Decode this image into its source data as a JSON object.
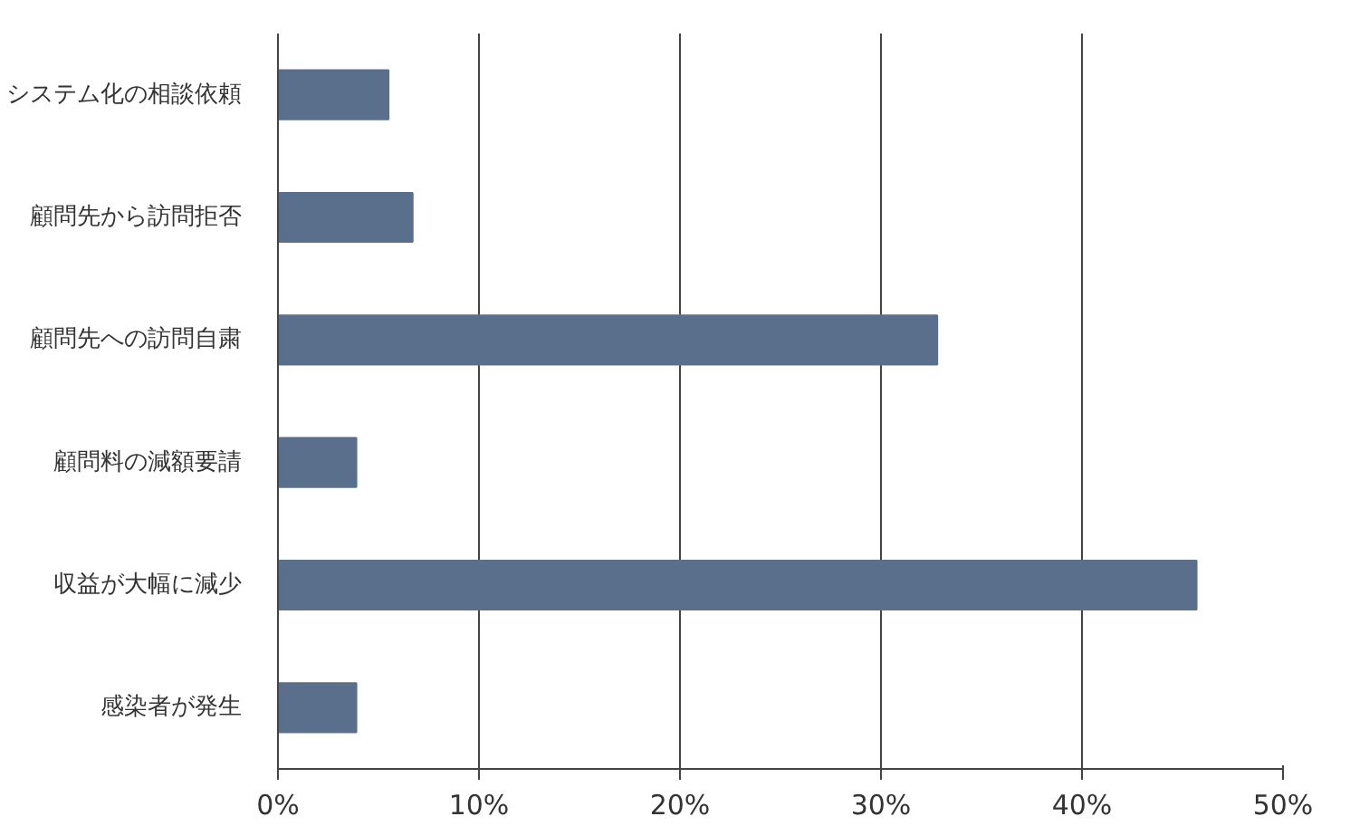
{
  "chart_data": {
    "type": "bar",
    "orientation": "horizontal",
    "categories": [
      "システム化の相談依頼",
      "顧問先から訪問拒否",
      "顧問先への訪問自粛",
      "顧問料の減額要請",
      "収益が大幅に減少",
      "感染者が発生"
    ],
    "values": [
      5.5,
      6.7,
      32.8,
      3.9,
      45.7,
      3.9
    ],
    "color": "#5a6f8c",
    "xlim": [
      0,
      50
    ],
    "xticks": [
      {
        "value": 0,
        "label": "0%"
      },
      {
        "value": 10,
        "label": "10%"
      },
      {
        "value": 20,
        "label": "20%"
      },
      {
        "value": 30,
        "label": "30%"
      },
      {
        "value": 40,
        "label": "40%"
      },
      {
        "value": 50,
        "label": "50%"
      }
    ],
    "grid": "x"
  }
}
